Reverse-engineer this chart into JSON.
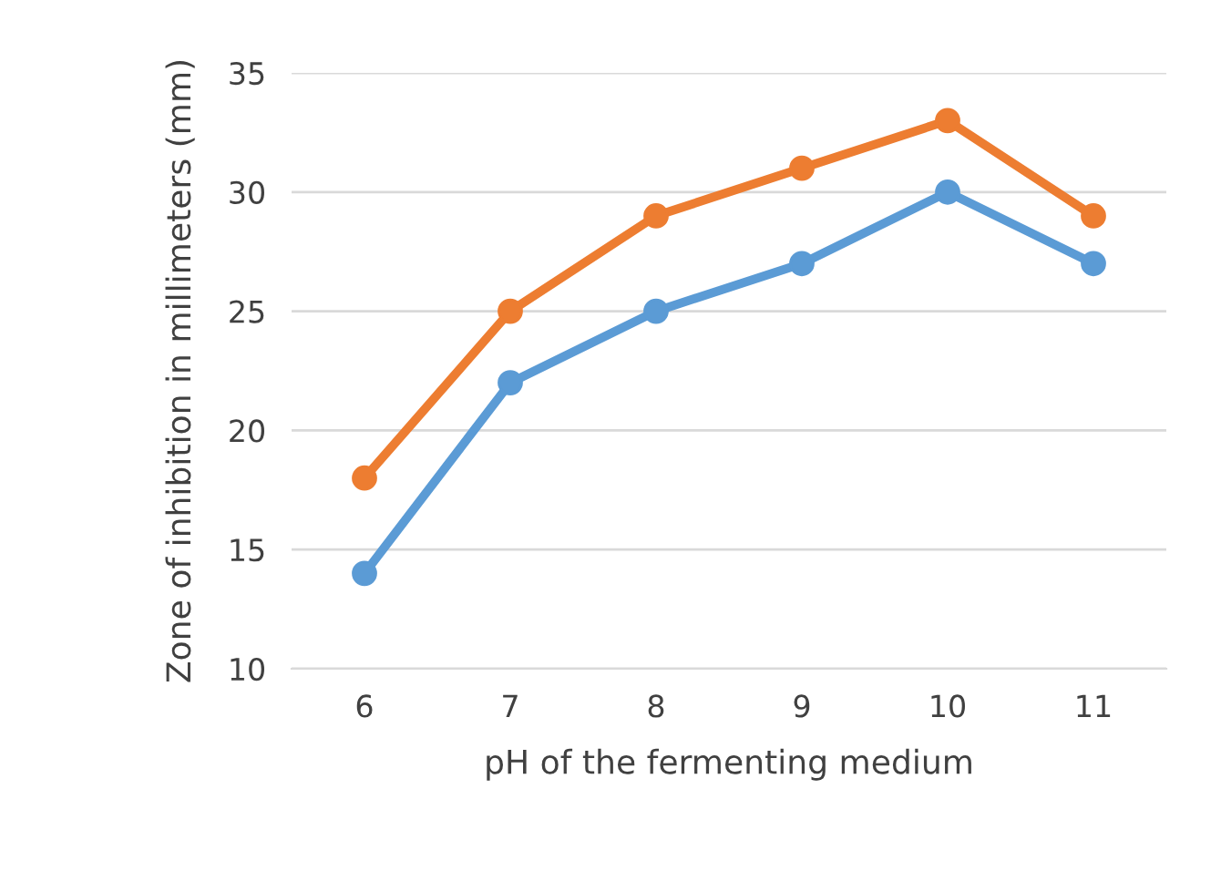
{
  "chart_data": {
    "type": "line",
    "xlabel": "pH of the fermenting medium",
    "ylabel": "Zone of inhibition in millimeters (mm)",
    "categories": [
      "6",
      "7",
      "8",
      "9",
      "10",
      "11"
    ],
    "series": [
      {
        "color": "#5b9bd5",
        "values": [
          14,
          22,
          25,
          27,
          30,
          27
        ]
      },
      {
        "color": "#ed7d31",
        "values": [
          18,
          25,
          29,
          31,
          33,
          29
        ]
      }
    ],
    "ylim": [
      10,
      35
    ],
    "yticks": [
      10,
      15,
      20,
      25,
      30,
      35
    ],
    "grid": "y",
    "marker": "circle",
    "line_style": "solid"
  }
}
